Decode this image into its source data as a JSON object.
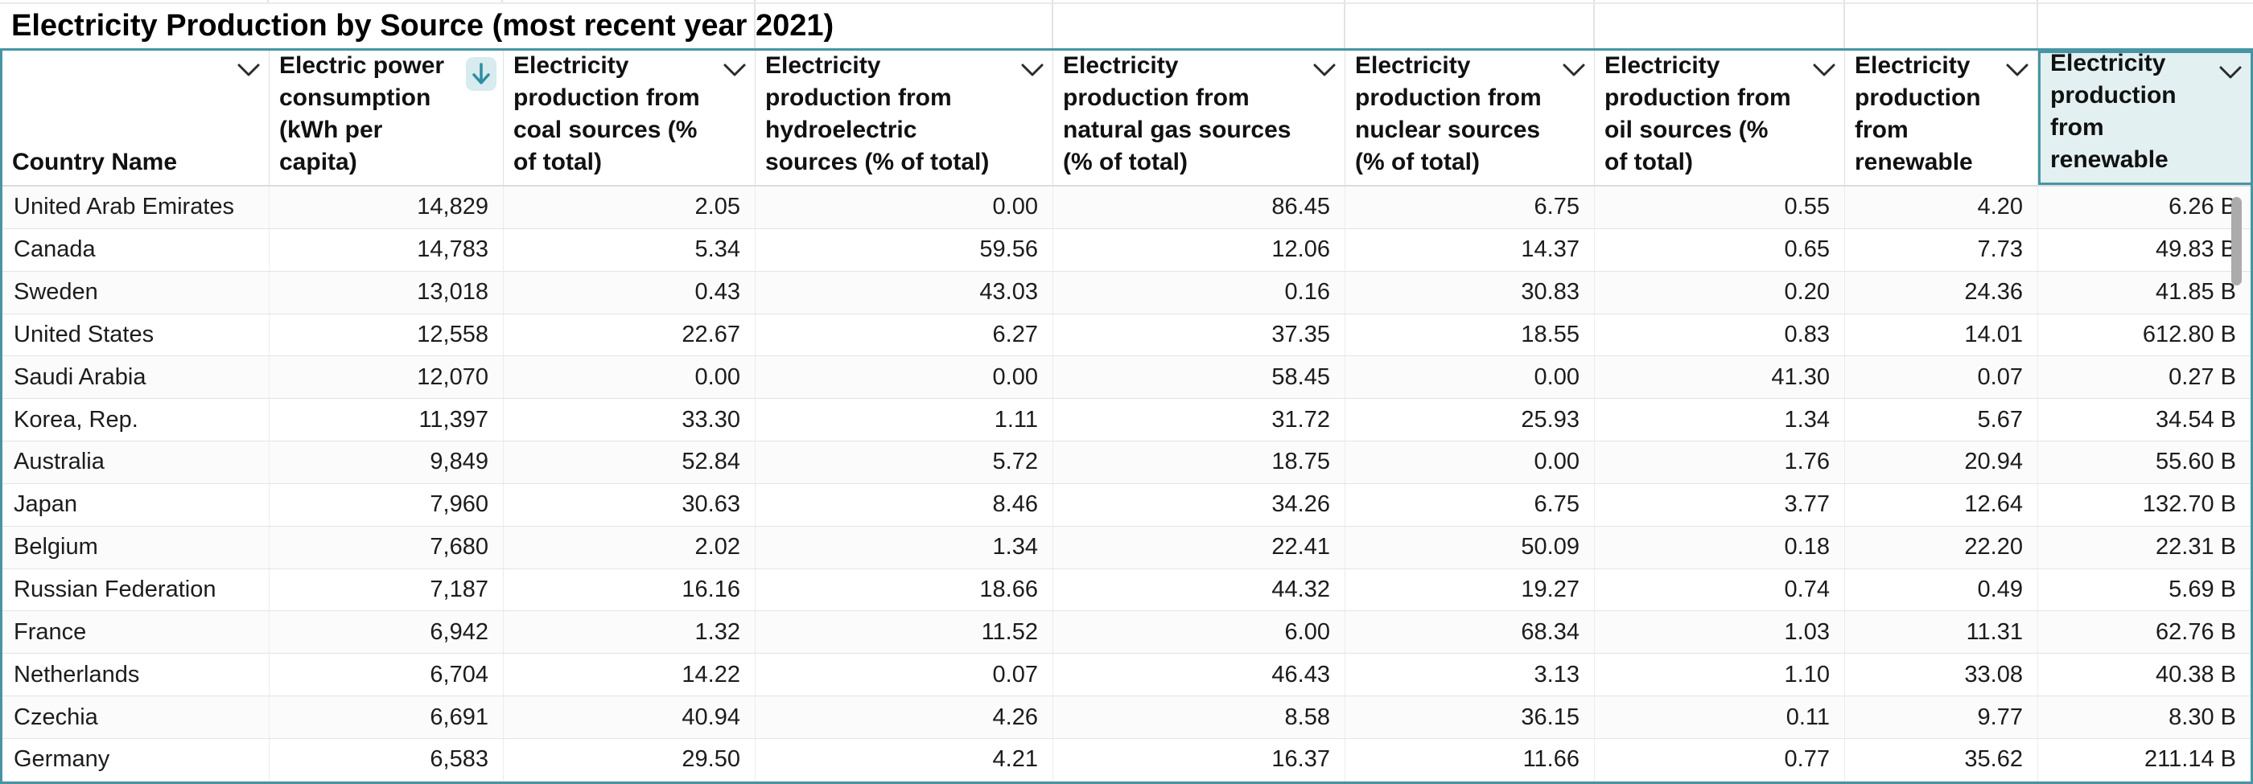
{
  "title": "Electricity Production by Source (most recent year 2021)",
  "accent": {
    "selection_border": "#4795a4",
    "selected_header_bg": "#e3f0f2",
    "sort_icon_bg": "#d8ebef",
    "sort_icon_arrow": "#2e8da2"
  },
  "columns": [
    {
      "id": "country",
      "label": "Country Name",
      "lines": [
        "Country Name"
      ],
      "align": "left",
      "icon": "chevron-down"
    },
    {
      "id": "consumption",
      "label": "Electric power consumption (kWh per capita)",
      "lines": [
        "Electric power",
        "consumption",
        "(kWh per",
        "capita)"
      ],
      "align": "right",
      "icon": "sort-descending",
      "sort": "desc"
    },
    {
      "id": "coal",
      "label": "Electricity production from coal sources (% of total)",
      "lines": [
        "Electricity",
        "production from",
        "coal sources (%",
        "of total)"
      ],
      "align": "right",
      "icon": "chevron-down"
    },
    {
      "id": "hydro",
      "label": "Electricity production from hydroelectric sources (% of total)",
      "lines": [
        "Electricity",
        "production from",
        "hydroelectric",
        "sources (% of total)"
      ],
      "align": "right",
      "icon": "chevron-down"
    },
    {
      "id": "gas",
      "label": "Electricity production from natural gas sources (% of total)",
      "lines": [
        "Electricity",
        "production from",
        "natural gas sources",
        "(% of total)"
      ],
      "align": "right",
      "icon": "chevron-down"
    },
    {
      "id": "nuclear",
      "label": "Electricity production from nuclear sources (% of total)",
      "lines": [
        "Electricity",
        "production from",
        "nuclear sources",
        "(% of total)"
      ],
      "align": "right",
      "icon": "chevron-down"
    },
    {
      "id": "oil",
      "label": "Electricity production from oil sources (% of total)",
      "lines": [
        "Electricity",
        "production from",
        "oil sources (%",
        "of total)"
      ],
      "align": "right",
      "icon": "chevron-down"
    },
    {
      "id": "renewable_pct",
      "label": "Electricity production from renewable",
      "lines": [
        "Electricity",
        "production",
        "from",
        "renewable"
      ],
      "align": "right",
      "icon": "chevron-down"
    },
    {
      "id": "renewable_total",
      "label": "Electricity production from renewable",
      "lines": [
        "Electricity",
        "production",
        "from",
        "renewable"
      ],
      "align": "right",
      "icon": "chevron-down",
      "selected": true
    }
  ],
  "rows": [
    {
      "country": "United Arab Emirates",
      "consumption": "14,829",
      "coal": "2.05",
      "hydro": "0.00",
      "gas": "86.45",
      "nuclear": "6.75",
      "oil": "0.55",
      "renewable_pct": "4.20",
      "renewable_total": "6.26 B"
    },
    {
      "country": "Canada",
      "consumption": "14,783",
      "coal": "5.34",
      "hydro": "59.56",
      "gas": "12.06",
      "nuclear": "14.37",
      "oil": "0.65",
      "renewable_pct": "7.73",
      "renewable_total": "49.83 B"
    },
    {
      "country": "Sweden",
      "consumption": "13,018",
      "coal": "0.43",
      "hydro": "43.03",
      "gas": "0.16",
      "nuclear": "30.83",
      "oil": "0.20",
      "renewable_pct": "24.36",
      "renewable_total": "41.85 B"
    },
    {
      "country": "United States",
      "consumption": "12,558",
      "coal": "22.67",
      "hydro": "6.27",
      "gas": "37.35",
      "nuclear": "18.55",
      "oil": "0.83",
      "renewable_pct": "14.01",
      "renewable_total": "612.80 B"
    },
    {
      "country": "Saudi Arabia",
      "consumption": "12,070",
      "coal": "0.00",
      "hydro": "0.00",
      "gas": "58.45",
      "nuclear": "0.00",
      "oil": "41.30",
      "renewable_pct": "0.07",
      "renewable_total": "0.27 B"
    },
    {
      "country": "Korea, Rep.",
      "consumption": "11,397",
      "coal": "33.30",
      "hydro": "1.11",
      "gas": "31.72",
      "nuclear": "25.93",
      "oil": "1.34",
      "renewable_pct": "5.67",
      "renewable_total": "34.54 B"
    },
    {
      "country": "Australia",
      "consumption": "9,849",
      "coal": "52.84",
      "hydro": "5.72",
      "gas": "18.75",
      "nuclear": "0.00",
      "oil": "1.76",
      "renewable_pct": "20.94",
      "renewable_total": "55.60 B"
    },
    {
      "country": "Japan",
      "consumption": "7,960",
      "coal": "30.63",
      "hydro": "8.46",
      "gas": "34.26",
      "nuclear": "6.75",
      "oil": "3.77",
      "renewable_pct": "12.64",
      "renewable_total": "132.70 B"
    },
    {
      "country": "Belgium",
      "consumption": "7,680",
      "coal": "2.02",
      "hydro": "1.34",
      "gas": "22.41",
      "nuclear": "50.09",
      "oil": "0.18",
      "renewable_pct": "22.20",
      "renewable_total": "22.31 B"
    },
    {
      "country": "Russian Federation",
      "consumption": "7,187",
      "coal": "16.16",
      "hydro": "18.66",
      "gas": "44.32",
      "nuclear": "19.27",
      "oil": "0.74",
      "renewable_pct": "0.49",
      "renewable_total": "5.69 B"
    },
    {
      "country": "France",
      "consumption": "6,942",
      "coal": "1.32",
      "hydro": "11.52",
      "gas": "6.00",
      "nuclear": "68.34",
      "oil": "1.03",
      "renewable_pct": "11.31",
      "renewable_total": "62.76 B"
    },
    {
      "country": "Netherlands",
      "consumption": "6,704",
      "coal": "14.22",
      "hydro": "0.07",
      "gas": "46.43",
      "nuclear": "3.13",
      "oil": "1.10",
      "renewable_pct": "33.08",
      "renewable_total": "40.38 B"
    },
    {
      "country": "Czechia",
      "consumption": "6,691",
      "coal": "40.94",
      "hydro": "4.26",
      "gas": "8.58",
      "nuclear": "36.15",
      "oil": "0.11",
      "renewable_pct": "9.77",
      "renewable_total": "8.30 B"
    },
    {
      "country": "Germany",
      "consumption": "6,583",
      "coal": "29.50",
      "hydro": "4.21",
      "gas": "16.37",
      "nuclear": "11.66",
      "oil": "0.77",
      "renewable_pct": "35.62",
      "renewable_total": "211.14 B"
    }
  ]
}
